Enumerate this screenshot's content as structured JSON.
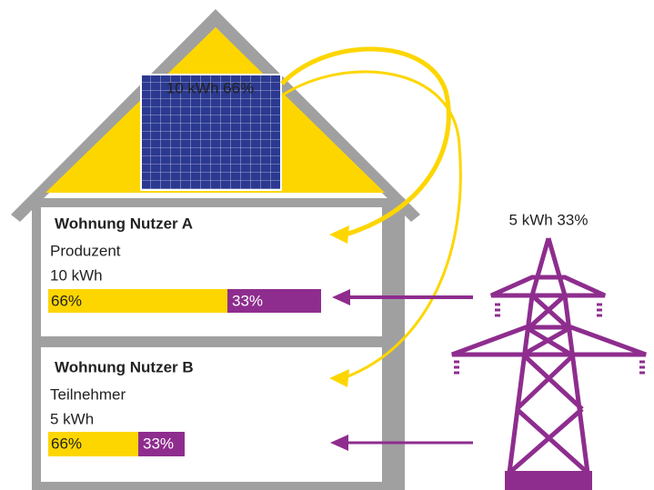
{
  "solar": {
    "label": "10 kWh 66%"
  },
  "grid": {
    "label": "5 kWh 33%"
  },
  "units": [
    {
      "title": "Wohnung Nutzer A",
      "role": "Produzent",
      "consumption": "10  kWh",
      "solar_share": "66%",
      "grid_share": "33%"
    },
    {
      "title": "Wohnung Nutzer B",
      "role": "Teilnehmer",
      "consumption": "5 kWh",
      "solar_share": "66%",
      "grid_share": "33%"
    }
  ]
}
